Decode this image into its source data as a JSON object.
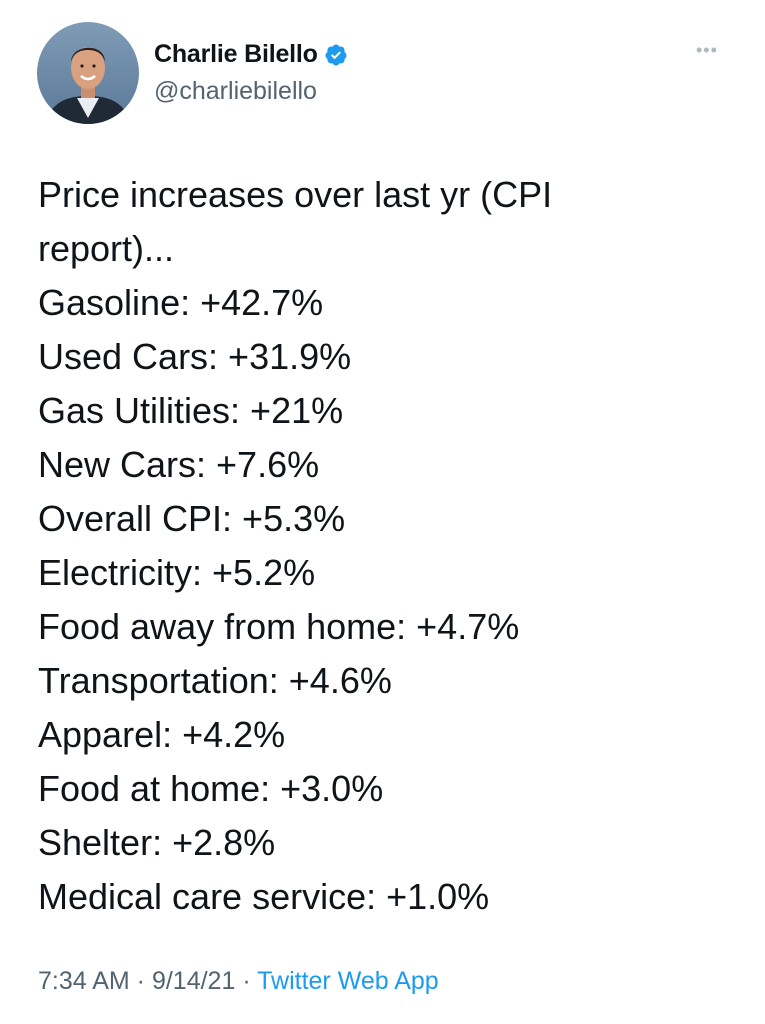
{
  "author": {
    "display_name": "Charlie Bilello",
    "handle": "@charliebilello",
    "verified": true
  },
  "more_menu": {
    "icon": "more-horizontal-icon",
    "glyph": "•••"
  },
  "tweet": {
    "lines": [
      "Price increases over last yr (CPI",
      "report)...",
      "Gasoline: +42.7%",
      "Used Cars: +31.9%",
      "Gas Utilities: +21%",
      "New Cars: +7.6%",
      "Overall CPI: +5.3%",
      "Electricity: +5.2%",
      "Food away from home: +4.7%",
      "Transportation: +4.6%",
      "Apparel: +4.2%",
      "Food at home: +3.0%",
      "Shelter: +2.8%",
      "Medical care service: +1.0%"
    ]
  },
  "meta": {
    "time": "7:34 AM",
    "separator": " · ",
    "date": "9/14/21",
    "source": "Twitter Web App"
  },
  "colors": {
    "text": "#0f1419",
    "secondary": "#536471",
    "accent": "#1d9bf0",
    "verified": "#1d9bf0"
  }
}
